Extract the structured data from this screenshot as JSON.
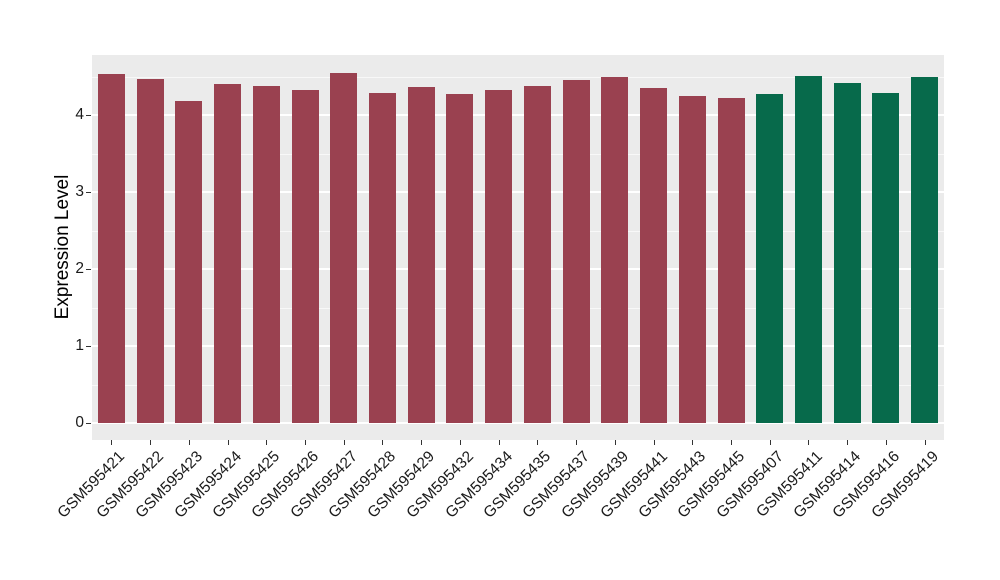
{
  "chart_data": {
    "type": "bar",
    "title": "",
    "xlabel": "",
    "ylabel": "Expression Level",
    "ylim": [
      0,
      4.78
    ],
    "yticks": [
      0,
      1,
      2,
      3,
      4
    ],
    "ytick_labels": [
      "0",
      "1",
      "2",
      "3",
      "4"
    ],
    "minor_ticks": [
      0.5,
      1.5,
      2.5,
      3.5,
      4.5
    ],
    "grid": "on",
    "legend": "none",
    "categories": [
      "GSM595421",
      "GSM595422",
      "GSM595423",
      "GSM595424",
      "GSM595425",
      "GSM595426",
      "GSM595427",
      "GSM595428",
      "GSM595429",
      "GSM595432",
      "GSM595434",
      "GSM595435",
      "GSM595437",
      "GSM595439",
      "GSM595441",
      "GSM595443",
      "GSM595445",
      "GSM595407",
      "GSM595411",
      "GSM595414",
      "GSM595416",
      "GSM595419"
    ],
    "values": [
      4.53,
      4.47,
      4.18,
      4.4,
      4.38,
      4.33,
      4.55,
      4.29,
      4.37,
      4.27,
      4.32,
      4.38,
      4.45,
      4.5,
      4.35,
      4.25,
      4.22,
      4.27,
      4.51,
      4.42,
      4.29,
      4.49
    ],
    "groups": [
      "maroon",
      "maroon",
      "maroon",
      "maroon",
      "maroon",
      "maroon",
      "maroon",
      "maroon",
      "maroon",
      "maroon",
      "maroon",
      "maroon",
      "maroon",
      "maroon",
      "maroon",
      "maroon",
      "maroon",
      "green",
      "green",
      "green",
      "green",
      "green"
    ],
    "group_colors": {
      "maroon": "#9A4150",
      "green": "#076A4B"
    }
  },
  "styles": {
    "panel_background": "#EBEBEB",
    "grid_color": "#FFFFFF",
    "tick_color": "#333333",
    "text_color": "#1A1A1A",
    "figure_background": "#FFFFFF"
  }
}
